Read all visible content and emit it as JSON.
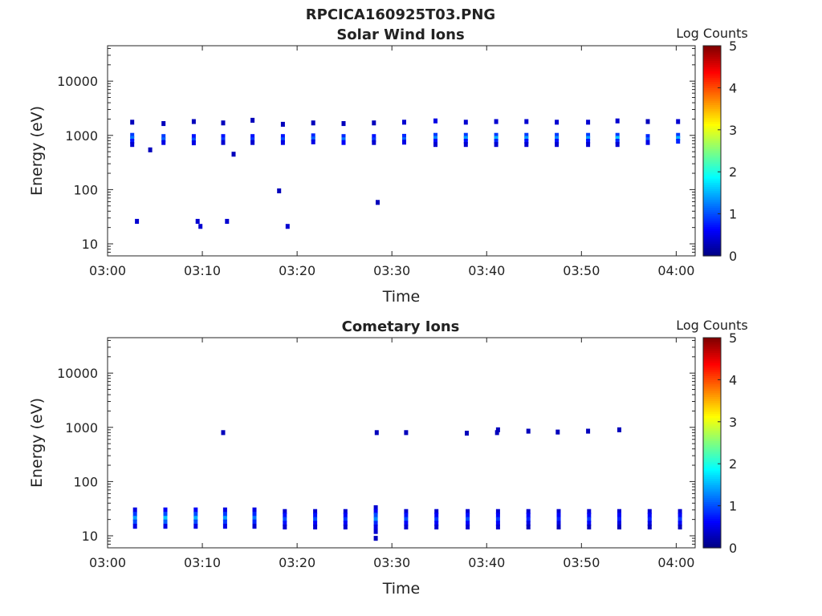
{
  "figure": {
    "title": "RPCICA160925T03.PNG"
  },
  "colormap": {
    "stops": [
      "#00007f",
      "#0000ff",
      "#007fff",
      "#00ffff",
      "#7fff7f",
      "#ffff00",
      "#ff7f00",
      "#ff0000",
      "#7f0000"
    ]
  },
  "chart_data": [
    {
      "type": "heatmap",
      "title": "Solar Wind Ions",
      "xlabel": "Time",
      "ylabel": "Energy (eV)",
      "yscale": "log",
      "ylim": [
        6,
        45000
      ],
      "xlim": [
        "03:00",
        "04:02"
      ],
      "x_ticks": [
        "03:00",
        "03:10",
        "03:20",
        "03:30",
        "03:40",
        "03:50",
        "04:00"
      ],
      "y_ticks": [
        "10",
        "100",
        "1000",
        "10000"
      ],
      "colorbar": {
        "label": "Log Counts",
        "range": [
          0,
          5
        ],
        "ticks": [
          "0",
          "1",
          "2",
          "3",
          "4",
          "5"
        ]
      },
      "sweep_times": [
        "03:02.6",
        "03:05.9",
        "03:09.1",
        "03:12.2",
        "03:15.3",
        "03:18.5",
        "03:21.7",
        "03:24.9",
        "03:28.1",
        "03:31.3",
        "03:34.6",
        "03:37.8",
        "03:41.0",
        "03:44.2",
        "03:47.4",
        "03:50.7",
        "03:53.8",
        "03:57.0",
        "04:00.2"
      ],
      "cells": [
        {
          "t": "03:02.6",
          "e": 1750,
          "v": 0.3
        },
        {
          "t": "03:02.6",
          "e": 1000,
          "v": 0.9
        },
        {
          "t": "03:02.6",
          "e": 880,
          "v": 1.2
        },
        {
          "t": "03:02.6",
          "e": 780,
          "v": 0.7
        },
        {
          "t": "03:02.6",
          "e": 680,
          "v": 0.4
        },
        {
          "t": "03:05.9",
          "e": 1650,
          "v": 0.3
        },
        {
          "t": "03:05.9",
          "e": 950,
          "v": 0.9
        },
        {
          "t": "03:05.9",
          "e": 830,
          "v": 1.1
        },
        {
          "t": "03:05.9",
          "e": 740,
          "v": 0.5
        },
        {
          "t": "03:09.1",
          "e": 1800,
          "v": 0.3
        },
        {
          "t": "03:09.1",
          "e": 950,
          "v": 0.7
        },
        {
          "t": "03:09.1",
          "e": 820,
          "v": 1.0
        },
        {
          "t": "03:09.1",
          "e": 730,
          "v": 0.5
        },
        {
          "t": "03:12.2",
          "e": 1700,
          "v": 0.3
        },
        {
          "t": "03:12.2",
          "e": 950,
          "v": 0.7
        },
        {
          "t": "03:12.2",
          "e": 830,
          "v": 0.9
        },
        {
          "t": "03:12.2",
          "e": 740,
          "v": 0.4
        },
        {
          "t": "03:15.3",
          "e": 1900,
          "v": 0.3
        },
        {
          "t": "03:15.3",
          "e": 950,
          "v": 0.7
        },
        {
          "t": "03:15.3",
          "e": 830,
          "v": 0.9
        },
        {
          "t": "03:15.3",
          "e": 740,
          "v": 0.4
        },
        {
          "t": "03:18.5",
          "e": 1600,
          "v": 0.3
        },
        {
          "t": "03:18.5",
          "e": 950,
          "v": 0.7
        },
        {
          "t": "03:18.5",
          "e": 830,
          "v": 1.0
        },
        {
          "t": "03:18.5",
          "e": 740,
          "v": 0.5
        },
        {
          "t": "03:21.7",
          "e": 1700,
          "v": 0.3
        },
        {
          "t": "03:21.7",
          "e": 980,
          "v": 0.8
        },
        {
          "t": "03:21.7",
          "e": 860,
          "v": 1.1
        },
        {
          "t": "03:21.7",
          "e": 760,
          "v": 0.5
        },
        {
          "t": "03:24.9",
          "e": 1650,
          "v": 0.3
        },
        {
          "t": "03:24.9",
          "e": 950,
          "v": 0.8
        },
        {
          "t": "03:24.9",
          "e": 830,
          "v": 1.2
        },
        {
          "t": "03:24.9",
          "e": 740,
          "v": 0.6
        },
        {
          "t": "03:28.1",
          "e": 1700,
          "v": 0.3
        },
        {
          "t": "03:28.1",
          "e": 950,
          "v": 0.7
        },
        {
          "t": "03:28.1",
          "e": 830,
          "v": 0.9
        },
        {
          "t": "03:28.1",
          "e": 740,
          "v": 0.4
        },
        {
          "t": "03:31.3",
          "e": 1750,
          "v": 0.4
        },
        {
          "t": "03:31.3",
          "e": 960,
          "v": 0.8
        },
        {
          "t": "03:31.3",
          "e": 840,
          "v": 1.1
        },
        {
          "t": "03:31.3",
          "e": 750,
          "v": 0.5
        },
        {
          "t": "03:34.6",
          "e": 1850,
          "v": 0.5
        },
        {
          "t": "03:34.6",
          "e": 1000,
          "v": 0.9
        },
        {
          "t": "03:34.6",
          "e": 880,
          "v": 1.3
        },
        {
          "t": "03:34.6",
          "e": 780,
          "v": 0.7
        },
        {
          "t": "03:34.6",
          "e": 680,
          "v": 0.4
        },
        {
          "t": "03:37.8",
          "e": 1750,
          "v": 0.4
        },
        {
          "t": "03:37.8",
          "e": 1000,
          "v": 0.9
        },
        {
          "t": "03:37.8",
          "e": 880,
          "v": 1.4
        },
        {
          "t": "03:37.8",
          "e": 780,
          "v": 0.7
        },
        {
          "t": "03:37.8",
          "e": 680,
          "v": 0.4
        },
        {
          "t": "03:41.0",
          "e": 1800,
          "v": 0.4
        },
        {
          "t": "03:41.0",
          "e": 1000,
          "v": 0.9
        },
        {
          "t": "03:41.0",
          "e": 880,
          "v": 1.5
        },
        {
          "t": "03:41.0",
          "e": 780,
          "v": 0.8
        },
        {
          "t": "03:41.0",
          "e": 680,
          "v": 0.4
        },
        {
          "t": "03:44.2",
          "e": 1800,
          "v": 0.4
        },
        {
          "t": "03:44.2",
          "e": 1000,
          "v": 0.9
        },
        {
          "t": "03:44.2",
          "e": 880,
          "v": 1.4
        },
        {
          "t": "03:44.2",
          "e": 780,
          "v": 0.7
        },
        {
          "t": "03:44.2",
          "e": 680,
          "v": 0.4
        },
        {
          "t": "03:47.4",
          "e": 1750,
          "v": 0.4
        },
        {
          "t": "03:47.4",
          "e": 1000,
          "v": 0.9
        },
        {
          "t": "03:47.4",
          "e": 880,
          "v": 1.3
        },
        {
          "t": "03:47.4",
          "e": 780,
          "v": 0.7
        },
        {
          "t": "03:47.4",
          "e": 680,
          "v": 0.4
        },
        {
          "t": "03:50.7",
          "e": 1750,
          "v": 0.4
        },
        {
          "t": "03:50.7",
          "e": 1000,
          "v": 0.9
        },
        {
          "t": "03:50.7",
          "e": 880,
          "v": 1.4
        },
        {
          "t": "03:50.7",
          "e": 780,
          "v": 0.7
        },
        {
          "t": "03:50.7",
          "e": 680,
          "v": 0.4
        },
        {
          "t": "03:53.8",
          "e": 1850,
          "v": 0.4
        },
        {
          "t": "03:53.8",
          "e": 1000,
          "v": 0.9
        },
        {
          "t": "03:53.8",
          "e": 880,
          "v": 1.6
        },
        {
          "t": "03:53.8",
          "e": 780,
          "v": 0.8
        },
        {
          "t": "03:53.8",
          "e": 680,
          "v": 0.4
        },
        {
          "t": "03:57.0",
          "e": 1800,
          "v": 0.3
        },
        {
          "t": "03:57.0",
          "e": 950,
          "v": 0.8
        },
        {
          "t": "03:57.0",
          "e": 830,
          "v": 1.1
        },
        {
          "t": "03:57.0",
          "e": 740,
          "v": 0.5
        },
        {
          "t": "04:00.2",
          "e": 1800,
          "v": 0.4
        },
        {
          "t": "04:00.2",
          "e": 1000,
          "v": 0.9
        },
        {
          "t": "04:00.2",
          "e": 880,
          "v": 1.5
        },
        {
          "t": "04:00.2",
          "e": 780,
          "v": 0.8
        },
        {
          "t": "03:04.5",
          "e": 540,
          "v": 0.3
        },
        {
          "t": "03:13.3",
          "e": 450,
          "v": 0.3
        },
        {
          "t": "03:18.1",
          "e": 95,
          "v": 0.3
        },
        {
          "t": "03:28.5",
          "e": 58,
          "v": 0.3
        },
        {
          "t": "03:03.1",
          "e": 26,
          "v": 0.4
        },
        {
          "t": "03:09.5",
          "e": 26,
          "v": 0.4
        },
        {
          "t": "03:09.8",
          "e": 21,
          "v": 0.4
        },
        {
          "t": "03:12.6",
          "e": 26,
          "v": 0.4
        },
        {
          "t": "03:19.0",
          "e": 21,
          "v": 0.4
        }
      ]
    },
    {
      "type": "heatmap",
      "title": "Cometary Ions",
      "xlabel": "Time",
      "ylabel": "Energy (eV)",
      "yscale": "log",
      "ylim": [
        6,
        45000
      ],
      "xlim": [
        "03:00",
        "04:02"
      ],
      "x_ticks": [
        "03:00",
        "03:10",
        "03:20",
        "03:30",
        "03:40",
        "03:50",
        "04:00"
      ],
      "y_ticks": [
        "10",
        "100",
        "1000",
        "10000"
      ],
      "colorbar": {
        "label": "Log Counts",
        "range": [
          0,
          5
        ],
        "ticks": [
          "0",
          "1",
          "2",
          "3",
          "4",
          "5"
        ]
      },
      "sweep_times": [
        "03:02.9",
        "03:06.1",
        "03:09.3",
        "03:12.4",
        "03:15.5",
        "03:18.7",
        "03:21.9",
        "03:25.1",
        "03:28.3",
        "03:31.5",
        "03:34.7",
        "03:38.0",
        "03:41.2",
        "03:44.4",
        "03:47.6",
        "03:50.8",
        "03:54.0",
        "03:57.2",
        "04:00.4"
      ],
      "cells": [
        {
          "t": "03:02.9",
          "e": 30,
          "v": 0.5
        },
        {
          "t": "03:02.9",
          "e": 25,
          "v": 0.9
        },
        {
          "t": "03:02.9",
          "e": 21,
          "v": 1.4
        },
        {
          "t": "03:02.9",
          "e": 18,
          "v": 1.0
        },
        {
          "t": "03:02.9",
          "e": 15,
          "v": 0.5
        },
        {
          "t": "03:06.1",
          "e": 30,
          "v": 0.6
        },
        {
          "t": "03:06.1",
          "e": 25,
          "v": 1.0
        },
        {
          "t": "03:06.1",
          "e": 21,
          "v": 1.6
        },
        {
          "t": "03:06.1",
          "e": 18,
          "v": 1.1
        },
        {
          "t": "03:06.1",
          "e": 15,
          "v": 0.5
        },
        {
          "t": "03:09.3",
          "e": 30,
          "v": 0.6
        },
        {
          "t": "03:09.3",
          "e": 25,
          "v": 1.0
        },
        {
          "t": "03:09.3",
          "e": 21,
          "v": 1.5
        },
        {
          "t": "03:09.3",
          "e": 18,
          "v": 1.0
        },
        {
          "t": "03:09.3",
          "e": 15,
          "v": 0.5
        },
        {
          "t": "03:12.4",
          "e": 30,
          "v": 0.5
        },
        {
          "t": "03:12.4",
          "e": 25,
          "v": 0.9
        },
        {
          "t": "03:12.4",
          "e": 21,
          "v": 1.4
        },
        {
          "t": "03:12.4",
          "e": 18,
          "v": 0.9
        },
        {
          "t": "03:12.4",
          "e": 15,
          "v": 0.5
        },
        {
          "t": "03:15.5",
          "e": 30,
          "v": 0.5
        },
        {
          "t": "03:15.5",
          "e": 25,
          "v": 0.8
        },
        {
          "t": "03:15.5",
          "e": 21,
          "v": 1.2
        },
        {
          "t": "03:15.5",
          "e": 18,
          "v": 0.8
        },
        {
          "t": "03:15.5",
          "e": 15,
          "v": 0.4
        },
        {
          "t": "03:18.7",
          "e": 28,
          "v": 0.4
        },
        {
          "t": "03:18.7",
          "e": 24,
          "v": 0.7
        },
        {
          "t": "03:18.7",
          "e": 20,
          "v": 1.0
        },
        {
          "t": "03:18.7",
          "e": 17,
          "v": 0.7
        },
        {
          "t": "03:18.7",
          "e": 14.5,
          "v": 0.4
        },
        {
          "t": "03:21.9",
          "e": 28,
          "v": 0.4
        },
        {
          "t": "03:21.9",
          "e": 24,
          "v": 0.7
        },
        {
          "t": "03:21.9",
          "e": 20,
          "v": 1.0
        },
        {
          "t": "03:21.9",
          "e": 17,
          "v": 0.6
        },
        {
          "t": "03:21.9",
          "e": 14.5,
          "v": 0.4
        },
        {
          "t": "03:25.1",
          "e": 28,
          "v": 0.4
        },
        {
          "t": "03:25.1",
          "e": 24,
          "v": 0.6
        },
        {
          "t": "03:25.1",
          "e": 20,
          "v": 0.9
        },
        {
          "t": "03:25.1",
          "e": 17,
          "v": 0.6
        },
        {
          "t": "03:25.1",
          "e": 14.5,
          "v": 0.4
        },
        {
          "t": "03:28.3",
          "e": 33,
          "v": 0.4
        },
        {
          "t": "03:28.3",
          "e": 28,
          "v": 0.6
        },
        {
          "t": "03:28.3",
          "e": 24,
          "v": 1.0
        },
        {
          "t": "03:28.3",
          "e": 20,
          "v": 1.3
        },
        {
          "t": "03:28.3",
          "e": 17,
          "v": 0.8
        },
        {
          "t": "03:28.3",
          "e": 14.5,
          "v": 0.5
        },
        {
          "t": "03:28.3",
          "e": 12,
          "v": 0.4
        },
        {
          "t": "03:28.3",
          "e": 9,
          "v": 0.3
        },
        {
          "t": "03:31.5",
          "e": 28,
          "v": 0.4
        },
        {
          "t": "03:31.5",
          "e": 24,
          "v": 0.7
        },
        {
          "t": "03:31.5",
          "e": 20,
          "v": 1.0
        },
        {
          "t": "03:31.5",
          "e": 17,
          "v": 0.6
        },
        {
          "t": "03:31.5",
          "e": 14.5,
          "v": 0.4
        },
        {
          "t": "03:34.7",
          "e": 28,
          "v": 0.4
        },
        {
          "t": "03:34.7",
          "e": 24,
          "v": 0.6
        },
        {
          "t": "03:34.7",
          "e": 20,
          "v": 0.9
        },
        {
          "t": "03:34.7",
          "e": 17,
          "v": 0.6
        },
        {
          "t": "03:34.7",
          "e": 14.5,
          "v": 0.4
        },
        {
          "t": "03:38.0",
          "e": 28,
          "v": 0.4
        },
        {
          "t": "03:38.0",
          "e": 24,
          "v": 0.7
        },
        {
          "t": "03:38.0",
          "e": 20,
          "v": 1.0
        },
        {
          "t": "03:38.0",
          "e": 17,
          "v": 0.6
        },
        {
          "t": "03:38.0",
          "e": 14.5,
          "v": 0.4
        },
        {
          "t": "03:41.2",
          "e": 28,
          "v": 0.4
        },
        {
          "t": "03:41.2",
          "e": 24,
          "v": 0.6
        },
        {
          "t": "03:41.2",
          "e": 20,
          "v": 0.9
        },
        {
          "t": "03:41.2",
          "e": 17,
          "v": 0.6
        },
        {
          "t": "03:41.2",
          "e": 14.5,
          "v": 0.4
        },
        {
          "t": "03:44.4",
          "e": 28,
          "v": 0.4
        },
        {
          "t": "03:44.4",
          "e": 24,
          "v": 0.6
        },
        {
          "t": "03:44.4",
          "e": 20,
          "v": 0.8
        },
        {
          "t": "03:44.4",
          "e": 17,
          "v": 0.5
        },
        {
          "t": "03:44.4",
          "e": 14.5,
          "v": 0.3
        },
        {
          "t": "03:47.6",
          "e": 28,
          "v": 0.4
        },
        {
          "t": "03:47.6",
          "e": 24,
          "v": 0.6
        },
        {
          "t": "03:47.6",
          "e": 20,
          "v": 0.8
        },
        {
          "t": "03:47.6",
          "e": 17,
          "v": 0.5
        },
        {
          "t": "03:47.6",
          "e": 14.5,
          "v": 0.3
        },
        {
          "t": "03:50.8",
          "e": 28,
          "v": 0.4
        },
        {
          "t": "03:50.8",
          "e": 24,
          "v": 0.6
        },
        {
          "t": "03:50.8",
          "e": 20,
          "v": 0.9
        },
        {
          "t": "03:50.8",
          "e": 17,
          "v": 0.6
        },
        {
          "t": "03:50.8",
          "e": 14.5,
          "v": 0.3
        },
        {
          "t": "03:54.0",
          "e": 28,
          "v": 0.4
        },
        {
          "t": "03:54.0",
          "e": 24,
          "v": 0.6
        },
        {
          "t": "03:54.0",
          "e": 20,
          "v": 0.8
        },
        {
          "t": "03:54.0",
          "e": 17,
          "v": 0.5
        },
        {
          "t": "03:54.0",
          "e": 14.5,
          "v": 0.3
        },
        {
          "t": "03:57.2",
          "e": 28,
          "v": 0.4
        },
        {
          "t": "03:57.2",
          "e": 24,
          "v": 0.6
        },
        {
          "t": "03:57.2",
          "e": 20,
          "v": 0.8
        },
        {
          "t": "03:57.2",
          "e": 17,
          "v": 0.5
        },
        {
          "t": "03:57.2",
          "e": 14.5,
          "v": 0.3
        },
        {
          "t": "04:00.4",
          "e": 28,
          "v": 0.4
        },
        {
          "t": "04:00.4",
          "e": 24,
          "v": 0.6
        },
        {
          "t": "04:00.4",
          "e": 20,
          "v": 0.9
        },
        {
          "t": "04:00.4",
          "e": 17,
          "v": 0.6
        },
        {
          "t": "04:00.4",
          "e": 14.5,
          "v": 0.3
        },
        {
          "t": "03:12.2",
          "e": 800,
          "v": 0.3
        },
        {
          "t": "03:28.4",
          "e": 800,
          "v": 0.3
        },
        {
          "t": "03:31.5",
          "e": 800,
          "v": 0.3
        },
        {
          "t": "03:37.9",
          "e": 780,
          "v": 0.3
        },
        {
          "t": "03:41.1",
          "e": 800,
          "v": 0.3
        },
        {
          "t": "03:41.2",
          "e": 900,
          "v": 0.3
        },
        {
          "t": "03:44.4",
          "e": 850,
          "v": 0.3
        },
        {
          "t": "03:47.5",
          "e": 820,
          "v": 0.3
        },
        {
          "t": "03:50.7",
          "e": 850,
          "v": 0.3
        },
        {
          "t": "03:54.0",
          "e": 900,
          "v": 0.3
        }
      ]
    }
  ]
}
